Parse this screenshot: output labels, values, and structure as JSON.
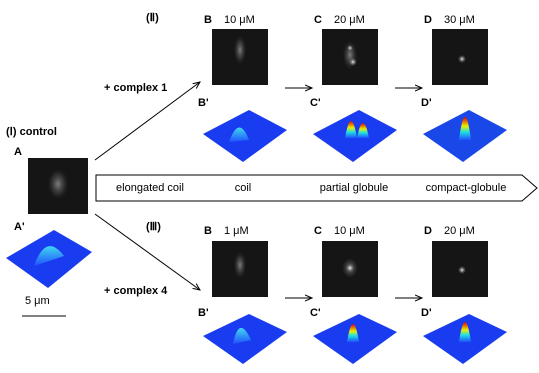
{
  "group_II": {
    "label": "(Ⅱ)",
    "reagent": "+ complex 1",
    "panels": [
      {
        "letter": "B",
        "conc": "10 μM",
        "prime": "B'"
      },
      {
        "letter": "C",
        "conc": "20 μM",
        "prime": "C'"
      },
      {
        "letter": "D",
        "conc": "30 μM",
        "prime": "D'"
      }
    ]
  },
  "group_I": {
    "label": "(Ⅰ) control",
    "letter": "A",
    "prime": "A'",
    "scale": "5 μm"
  },
  "transition": [
    "elongated coil",
    "coil",
    "partial globule",
    "compact-globule"
  ],
  "group_III": {
    "label": "(Ⅲ)",
    "reagent": "+ complex 4",
    "panels": [
      {
        "letter": "B",
        "conc": "1 μM",
        "prime": "B'"
      },
      {
        "letter": "C",
        "conc": "10 μM",
        "prime": "C'"
      },
      {
        "letter": "D",
        "conc": "20 μM",
        "prime": "D'"
      }
    ]
  }
}
